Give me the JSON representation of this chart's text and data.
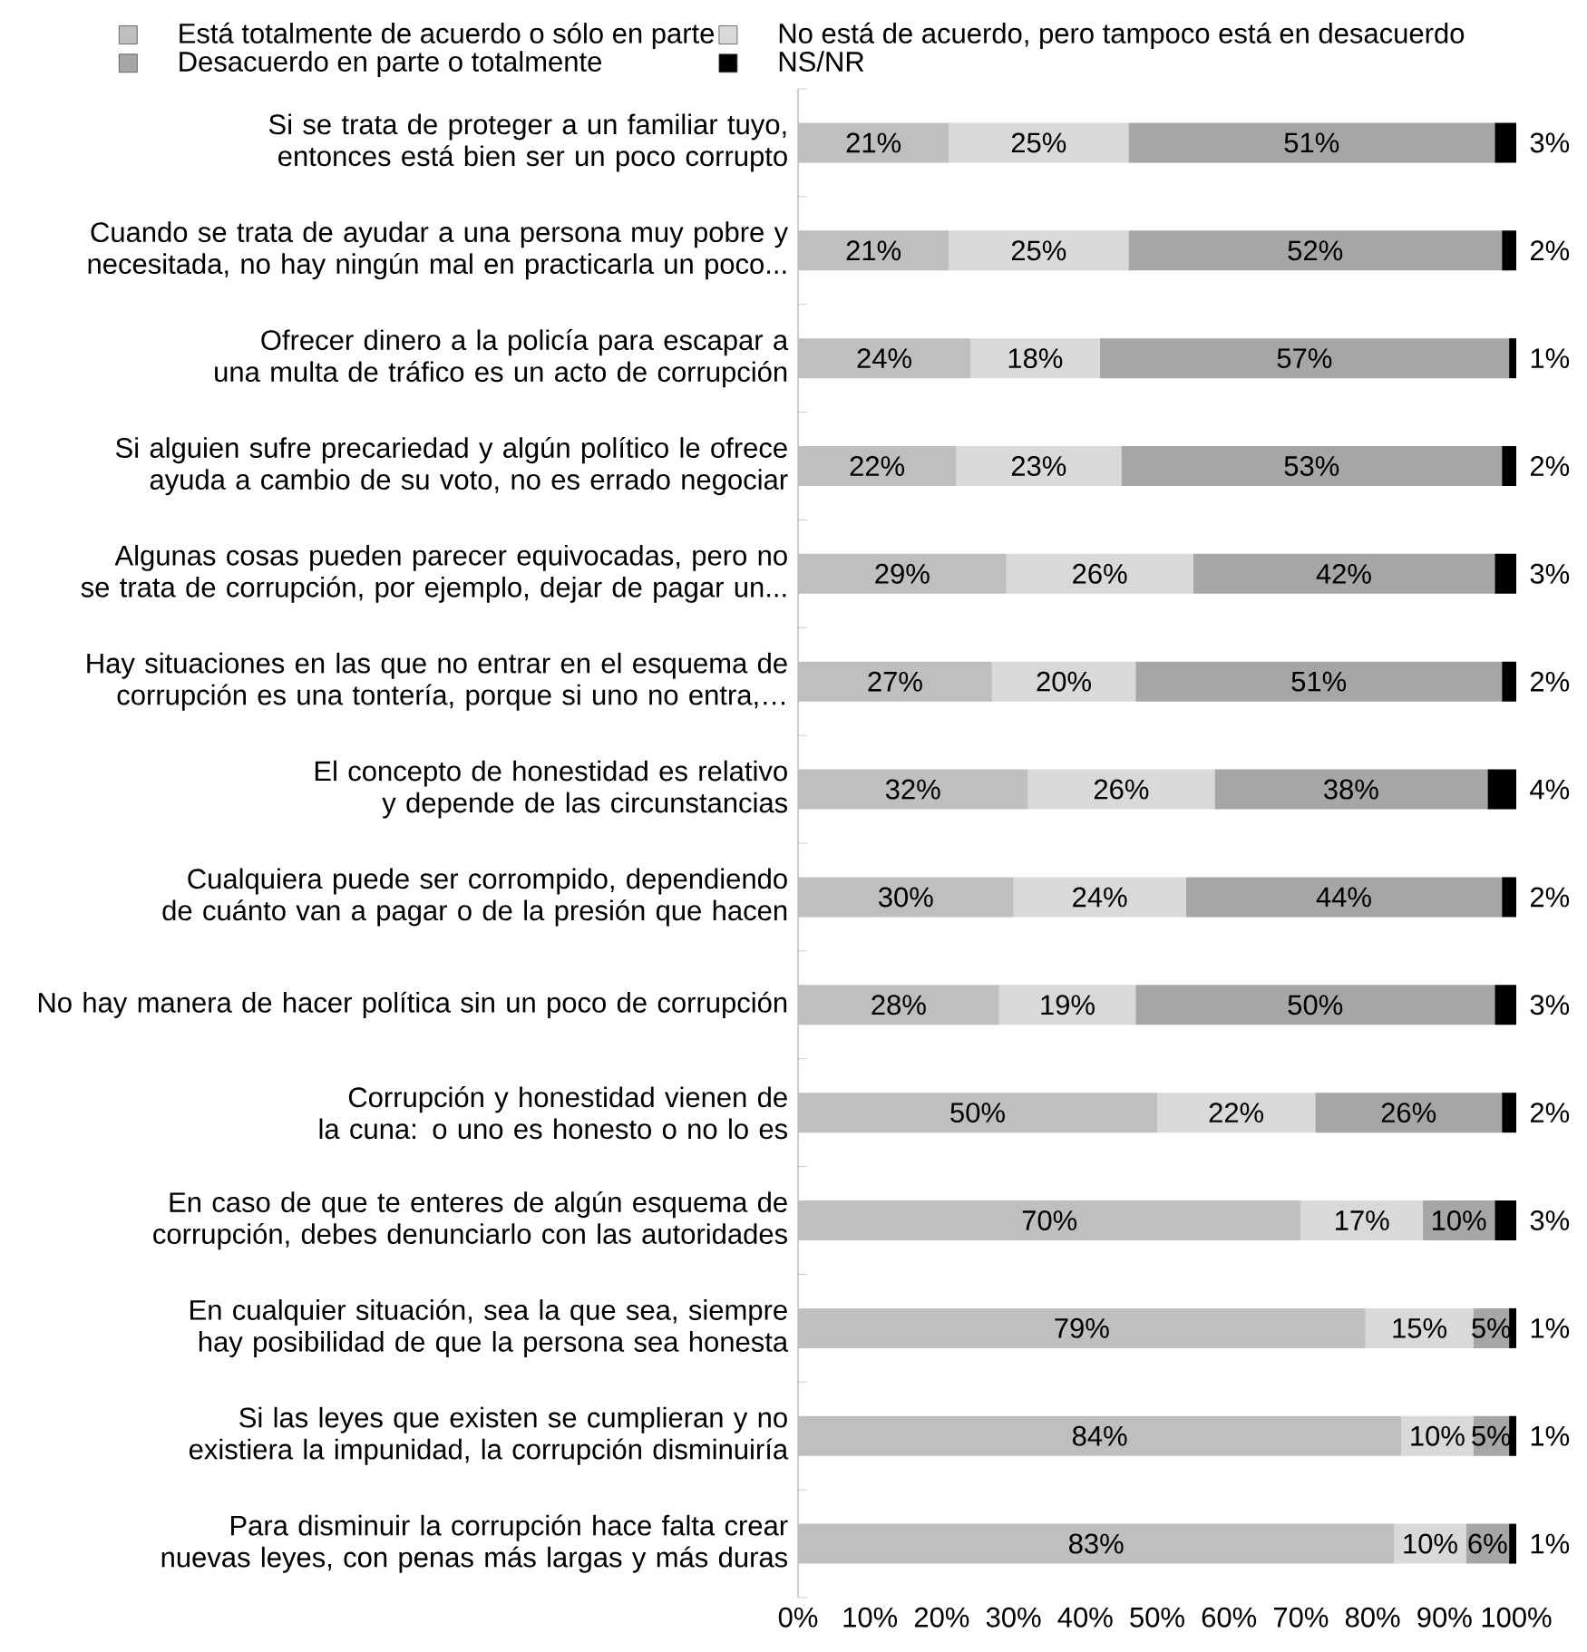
{
  "chart_data": {
    "type": "bar",
    "orientation": "horizontal",
    "stacked": true,
    "legend": "top",
    "categories": [
      "Si se trata de proteger a un familiar tuyo, entonces está bien ser un poco corrupto",
      "Cuando se trata de ayudar a una persona muy pobre y necesitada, no hay ningún mal en practicarla un poco...",
      "Ofrecer dinero a la policía para escapar a una multa de tráfico es un acto de corrupción",
      "Si alguien sufre precariedad y algún político le ofrece ayuda a cambio de su voto, no es errado negociar",
      "Algunas cosas pueden parecer equivocadas, pero no se trata de corrupción, por ejemplo, dejar de pagar un...",
      "Hay situaciones en las que no entrar en el esquema de corrupción es una tontería, porque si uno no entra,…",
      "El concepto de honestidad es relativo y depende de las circunstancias",
      "Cualquiera puede ser corrompido, dependiendo de cuánto van a pagar o de la presión que hacen",
      "No hay manera de hacer política sin un poco de corrupción",
      "Corrupción y honestidad vienen de la cuna: o uno es honesto o no lo es",
      "En caso de que te enteres de algún esquema de corrupción, debes denunciarlo con las autoridades",
      "En cualquier situación, sea la que sea, siempre hay posibilidad de que la persona sea honesta",
      "Si las leyes que existen se cumplieran y no existiera la impunidad, la corrupción disminuiría",
      "Para disminuir la corrupción hace falta crear nuevas leyes, con penas más largas y más duras"
    ],
    "series": [
      {
        "name": "Está totalmente de acuerdo o sólo en parte",
        "color": "#bfbfbf",
        "values": [
          21,
          21,
          24,
          22,
          29,
          27,
          32,
          30,
          28,
          50,
          70,
          79,
          84,
          83
        ],
        "value_labels": [
          "21%",
          "21%",
          "24%",
          "22%",
          "29%",
          "27%",
          "32%",
          "30%",
          "28%",
          "50%",
          "70%",
          "79%",
          "84%",
          "83%"
        ]
      },
      {
        "name": "No está de acuerdo, pero tampoco está en desacuerdo",
        "color": "#d9d9d9",
        "values": [
          25,
          25,
          18,
          23,
          26,
          20,
          26,
          24,
          19,
          22,
          17,
          15,
          10,
          10
        ],
        "value_labels": [
          "25%",
          "25%",
          "18%",
          "23%",
          "26%",
          "20%",
          "26%",
          "24%",
          "19%",
          "22%",
          "17%",
          "15%",
          "10%",
          "10%"
        ]
      },
      {
        "name": "Desacuerdo en parte o totalmente",
        "color": "#a6a6a6",
        "values": [
          51,
          52,
          57,
          53,
          42,
          51,
          38,
          44,
          50,
          26,
          10,
          5,
          5,
          6
        ],
        "value_labels": [
          "51%",
          "52%",
          "57%",
          "53%",
          "42%",
          "51%",
          "38%",
          "44%",
          "50%",
          "26%",
          "10%",
          "5%",
          "5%",
          "6%"
        ]
      },
      {
        "name": "NS/NR",
        "color": "#000000",
        "values": [
          3,
          2,
          1,
          2,
          3,
          2,
          4,
          2,
          3,
          2,
          3,
          1,
          1,
          1
        ],
        "value_labels": [
          "3%",
          "2%",
          "1%",
          "2%",
          "3%",
          "2%",
          "4%",
          "2%",
          "3%",
          "2%",
          "3%",
          "1%",
          "1%",
          "1%"
        ]
      }
    ],
    "xlim": [
      0,
      100
    ],
    "xticks": [
      {
        "value": 0,
        "label": "0%"
      },
      {
        "value": 10,
        "label": "10%"
      },
      {
        "value": 20,
        "label": "20%"
      },
      {
        "value": 30,
        "label": "30%"
      },
      {
        "value": 40,
        "label": "40%"
      },
      {
        "value": 50,
        "label": "50%"
      },
      {
        "value": 60,
        "label": "60%"
      },
      {
        "value": 70,
        "label": "70%"
      },
      {
        "value": 80,
        "label": "80%"
      },
      {
        "value": 90,
        "label": "90%"
      },
      {
        "value": 100,
        "label": "100%"
      }
    ]
  }
}
